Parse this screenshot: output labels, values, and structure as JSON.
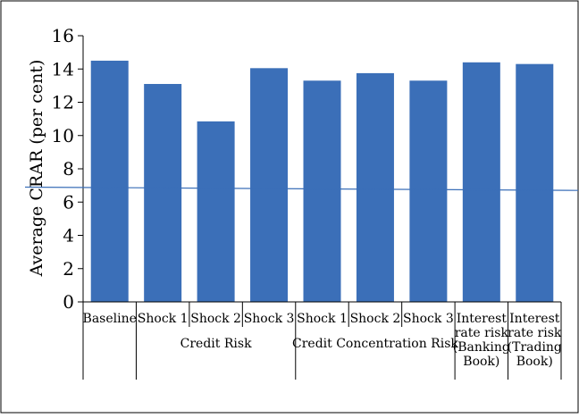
{
  "chart_data": {
    "type": "bar",
    "ylabel": "Average CRAR (per cent)",
    "ylim": [
      0,
      16
    ],
    "yticks": [
      0,
      2,
      4,
      6,
      8,
      10,
      12,
      14,
      16
    ],
    "bar_color": "#3b6fb8",
    "reference_line_color": "#3b6fb8",
    "reference_line": {
      "start": 6.9,
      "end": 6.7
    },
    "categories": [
      {
        "label": [
          "Baseline"
        ],
        "value": 14.5
      },
      {
        "label": [
          "Shock 1"
        ],
        "value": 13.1
      },
      {
        "label": [
          "Shock 2"
        ],
        "value": 10.85
      },
      {
        "label": [
          "Shock 3"
        ],
        "value": 14.05
      },
      {
        "label": [
          "Shock 1"
        ],
        "value": 13.3
      },
      {
        "label": [
          "Shock 2"
        ],
        "value": 13.75
      },
      {
        "label": [
          "Shock 3"
        ],
        "value": 13.3
      },
      {
        "label": [
          "Interest",
          "rate risk",
          "(Banking",
          "Book)"
        ],
        "value": 14.4
      },
      {
        "label": [
          "Interest",
          "rate risk",
          "(Trading",
          "Book)"
        ],
        "value": 14.3
      }
    ],
    "groups": [
      {
        "label": "Credit Risk",
        "from": 1,
        "to": 3
      },
      {
        "label": "Credit Concentration Risk",
        "from": 4,
        "to": 6
      }
    ]
  }
}
